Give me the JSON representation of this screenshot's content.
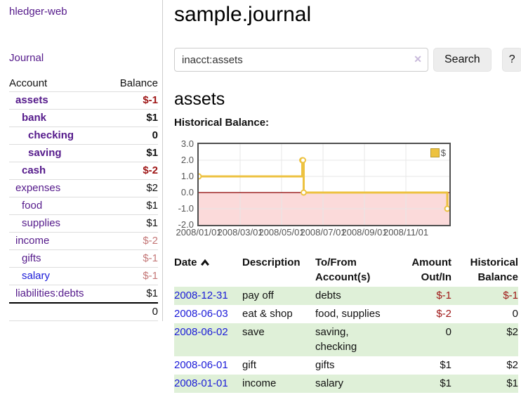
{
  "sidebar": {
    "app_title": "hledger-web",
    "journal_label": "Journal",
    "accounts_table": {
      "headers": [
        "Account",
        "Balance"
      ],
      "rows": [
        {
          "name": "assets",
          "depth": 1,
          "bold": true,
          "balance": "$-1",
          "balance_class": "neg-strong"
        },
        {
          "name": "bank",
          "depth": 2,
          "bold": true,
          "balance": "$1",
          "balance_class": ""
        },
        {
          "name": "checking",
          "depth": 3,
          "bold": true,
          "balance": "0",
          "balance_class": ""
        },
        {
          "name": "saving",
          "depth": 3,
          "bold": true,
          "balance": "$1",
          "balance_class": ""
        },
        {
          "name": "cash",
          "depth": 2,
          "bold": true,
          "balance": "$-2",
          "balance_class": "neg-strong"
        },
        {
          "name": "expenses",
          "depth": 1,
          "bold": false,
          "balance": "$2",
          "balance_class": ""
        },
        {
          "name": "food",
          "depth": 2,
          "bold": false,
          "balance": "$1",
          "balance_class": ""
        },
        {
          "name": "supplies",
          "depth": 2,
          "bold": false,
          "balance": "$1",
          "balance_class": ""
        },
        {
          "name": "income",
          "depth": 1,
          "bold": false,
          "balance": "$-2",
          "balance_class": "neg-soft"
        },
        {
          "name": "gifts",
          "depth": 2,
          "bold": false,
          "balance": "$-1",
          "balance_class": "neg-soft"
        },
        {
          "name": "salary",
          "depth": 2,
          "bold": false,
          "link_class": "blue",
          "balance": "$-1",
          "balance_class": "neg-soft"
        },
        {
          "name": "liabilities:debts",
          "depth": 1,
          "bold": false,
          "balance": "$1",
          "balance_class": ""
        }
      ],
      "total": "0"
    }
  },
  "header": {
    "title": "sample.journal"
  },
  "search": {
    "value": "inacct:assets",
    "clear_icon": "✕",
    "button_label": "Search",
    "help_label": "?"
  },
  "account_page": {
    "heading": "assets",
    "chart_label": "Historical Balance:"
  },
  "chart_data": {
    "type": "line",
    "title": "Historical Balance",
    "step": true,
    "series": [
      {
        "name": "$",
        "color": "#edc240",
        "points": [
          [
            "2008-01-01",
            1
          ],
          [
            "2008-06-01",
            2
          ],
          [
            "2008-06-02",
            2
          ],
          [
            "2008-06-03",
            0
          ],
          [
            "2008-12-31",
            -1
          ]
        ]
      }
    ],
    "x_tick_labels": [
      "2008/01/01",
      "2008/03/01",
      "2008/05/01",
      "2008/07/01",
      "2008/09/01",
      "2008/11/01"
    ],
    "x_tick_months": [
      0,
      2,
      4,
      6,
      8,
      10
    ],
    "x_range_months": [
      0,
      12.1
    ],
    "y_tick_labels": [
      "3.0",
      "2.0",
      "1.0",
      "0.0",
      "-1.0",
      "-2.0"
    ],
    "y_ticks": [
      3,
      2,
      1,
      0,
      -1,
      -2
    ],
    "ylim": [
      -2,
      3
    ],
    "grid": true,
    "legend": {
      "label": "$",
      "position": "top-right"
    },
    "negative_region_color": "#fbdada",
    "zero_line_color": "#8b0000",
    "grid_color": "#e7e7e7"
  },
  "register_table": {
    "headers": [
      "Date",
      "Description",
      "To/From Account(s)",
      "Amount Out/In",
      "Historical Balance"
    ],
    "rows": [
      {
        "date": "2008-12-31",
        "description": "pay off",
        "accounts": "debts",
        "amount": "$-1",
        "amount_neg": true,
        "balance": "$-1",
        "balance_neg": true,
        "shaded": true
      },
      {
        "date": "2008-06-03",
        "description": "eat & shop",
        "accounts": "food, supplies",
        "amount": "$-2",
        "amount_neg": true,
        "balance": "0",
        "balance_neg": false,
        "shaded": false
      },
      {
        "date": "2008-06-02",
        "description": "save",
        "accounts": "saving,\nchecking",
        "amount": "0",
        "amount_neg": false,
        "balance": "$2",
        "balance_neg": false,
        "shaded": true
      },
      {
        "date": "2008-06-01",
        "description": "gift",
        "accounts": "gifts",
        "amount": "$1",
        "amount_neg": false,
        "balance": "$2",
        "balance_neg": false,
        "shaded": false
      },
      {
        "date": "2008-01-01",
        "description": "income",
        "accounts": "salary",
        "amount": "$1",
        "amount_neg": false,
        "balance": "$1",
        "balance_neg": false,
        "shaded": true
      }
    ]
  }
}
